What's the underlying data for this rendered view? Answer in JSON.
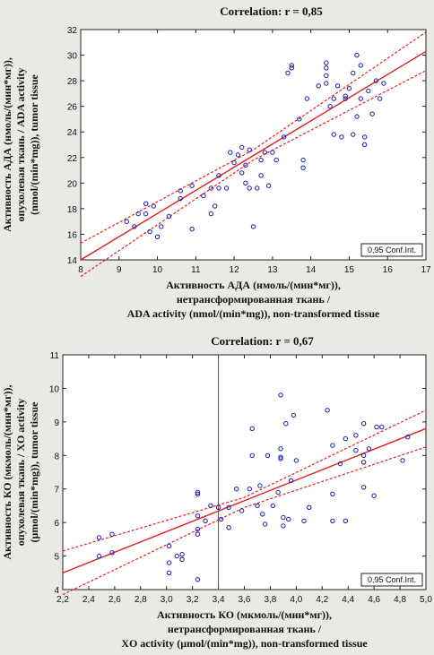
{
  "chart_data": [
    {
      "type": "scatter",
      "title": "Correlation: r = 0,85",
      "xlabel": [
        "Активность АДА (нмоль/(мин*мг)),",
        "нетрансформированная ткань /",
        "ADA activity  (nmol/(min*mg)), non-transformed tissue"
      ],
      "ylabel": [
        "Активность АДА (нмоль/(мин*мг)),",
        "опухолевая ткань / ADA activity",
        "(nmol/(min*mg)), tumor tissue"
      ],
      "xlim": [
        8,
        17
      ],
      "ylim": [
        14,
        32
      ],
      "xticks": [
        "8",
        "9",
        "10",
        "11",
        "12",
        "13",
        "14",
        "15",
        "16",
        "17"
      ],
      "yticks": [
        "14",
        "16",
        "18",
        "20",
        "22",
        "24",
        "26",
        "28",
        "30",
        "32"
      ],
      "legend": "0,95 Conf.Int.",
      "fit": [
        [
          8,
          14.0
        ],
        [
          17,
          30.3
        ]
      ],
      "ci_upper": [
        [
          8,
          15.3
        ],
        [
          12.5,
          22.6
        ],
        [
          17,
          31.8
        ]
      ],
      "ci_lower": [
        [
          8,
          12.7
        ],
        [
          12.5,
          21.8
        ],
        [
          17,
          28.8
        ]
      ],
      "points": [
        [
          9.2,
          17.0
        ],
        [
          9.4,
          16.6
        ],
        [
          9.5,
          17.6
        ],
        [
          9.7,
          18.4
        ],
        [
          9.7,
          17.6
        ],
        [
          9.9,
          18.2
        ],
        [
          9.8,
          16.2
        ],
        [
          10.0,
          15.8
        ],
        [
          10.1,
          16.6
        ],
        [
          10.3,
          17.4
        ],
        [
          10.6,
          18.8
        ],
        [
          10.6,
          19.4
        ],
        [
          10.9,
          19.8
        ],
        [
          10.9,
          16.4
        ],
        [
          11.2,
          19.0
        ],
        [
          11.4,
          19.6
        ],
        [
          11.4,
          17.6
        ],
        [
          11.5,
          18.2
        ],
        [
          11.6,
          19.6
        ],
        [
          11.6,
          20.6
        ],
        [
          11.8,
          19.6
        ],
        [
          11.9,
          22.4
        ],
        [
          12.0,
          21.6
        ],
        [
          12.1,
          22.2
        ],
        [
          12.2,
          20.8
        ],
        [
          12.2,
          22.8
        ],
        [
          12.3,
          21.4
        ],
        [
          12.3,
          20.0
        ],
        [
          12.4,
          22.6
        ],
        [
          12.4,
          19.6
        ],
        [
          12.5,
          16.6
        ],
        [
          12.6,
          19.6
        ],
        [
          12.7,
          20.6
        ],
        [
          12.7,
          21.8
        ],
        [
          12.8,
          22.4
        ],
        [
          12.9,
          19.8
        ],
        [
          13.0,
          22.4
        ],
        [
          13.1,
          21.8
        ],
        [
          13.3,
          23.6
        ],
        [
          13.4,
          28.6
        ],
        [
          13.5,
          29.2
        ],
        [
          13.5,
          29.0
        ],
        [
          13.7,
          25.0
        ],
        [
          13.8,
          21.8
        ],
        [
          13.8,
          21.2
        ],
        [
          13.9,
          26.6
        ],
        [
          14.2,
          27.6
        ],
        [
          14.4,
          27.8
        ],
        [
          14.4,
          28.4
        ],
        [
          14.4,
          29.0
        ],
        [
          14.4,
          29.4
        ],
        [
          14.5,
          26.0
        ],
        [
          14.6,
          23.8
        ],
        [
          14.6,
          26.6
        ],
        [
          14.7,
          27.6
        ],
        [
          14.8,
          23.6
        ],
        [
          14.9,
          26.6
        ],
        [
          14.9,
          26.8
        ],
        [
          15.0,
          27.4
        ],
        [
          15.1,
          23.8
        ],
        [
          15.1,
          28.6
        ],
        [
          15.2,
          30.0
        ],
        [
          15.2,
          25.2
        ],
        [
          15.3,
          26.6
        ],
        [
          15.3,
          29.2
        ],
        [
          15.4,
          23.6
        ],
        [
          15.4,
          23.0
        ],
        [
          15.5,
          27.2
        ],
        [
          15.6,
          25.4
        ],
        [
          15.7,
          28.0
        ],
        [
          15.8,
          26.6
        ],
        [
          15.9,
          27.8
        ]
      ]
    },
    {
      "type": "scatter",
      "title": "Correlation: r = 0,67",
      "xlabel": [
        "Активность КО (мкмоль/(мин*мг)),",
        "нетрансформированная ткань /",
        "XO activity (μmol/(min*mg)), non-transformed tissue"
      ],
      "ylabel": [
        "Активность КО (мкмоль/(мин*мг)),",
        "опухолевая ткань / XO activity",
        "(μmol/(min*mg)), tumor tissue"
      ],
      "xlim": [
        2.2,
        5.0
      ],
      "ylim": [
        4,
        11
      ],
      "xticks": [
        "2,2",
        "2,4",
        "2,6",
        "2,8",
        "3,0",
        "3,2",
        "3,4",
        "3,6",
        "3,8",
        "4,0",
        "4,2",
        "4,4",
        "4,6",
        "4,8",
        "5,0"
      ],
      "yticks": [
        "4",
        "5",
        "6",
        "7",
        "8",
        "9",
        "10",
        "11"
      ],
      "legend": "0,95 Conf.Int.",
      "fit": [
        [
          2.2,
          4.5
        ],
        [
          5.0,
          8.8
        ]
      ],
      "ci_upper": [
        [
          2.2,
          5.15
        ],
        [
          3.6,
          6.75
        ],
        [
          5.0,
          9.35
        ]
      ],
      "ci_lower": [
        [
          2.2,
          3.85
        ],
        [
          3.6,
          6.45
        ],
        [
          5.0,
          8.25
        ]
      ],
      "points": [
        [
          2.48,
          5.55
        ],
        [
          2.48,
          5.0
        ],
        [
          2.58,
          5.1
        ],
        [
          2.58,
          5.65
        ],
        [
          3.02,
          5.3
        ],
        [
          3.02,
          4.8
        ],
        [
          3.02,
          4.5
        ],
        [
          3.08,
          5.0
        ],
        [
          3.12,
          5.05
        ],
        [
          3.12,
          4.9
        ],
        [
          3.24,
          6.9
        ],
        [
          3.24,
          6.85
        ],
        [
          3.24,
          6.2
        ],
        [
          3.24,
          5.8
        ],
        [
          3.24,
          5.65
        ],
        [
          3.24,
          4.3
        ],
        [
          3.3,
          6.05
        ],
        [
          3.34,
          6.5
        ],
        [
          3.4,
          6.45
        ],
        [
          3.42,
          6.1
        ],
        [
          3.48,
          6.45
        ],
        [
          3.48,
          5.85
        ],
        [
          3.54,
          7.0
        ],
        [
          3.58,
          6.35
        ],
        [
          3.64,
          7.0
        ],
        [
          3.66,
          8.8
        ],
        [
          3.66,
          8.0
        ],
        [
          3.7,
          6.5
        ],
        [
          3.72,
          7.1
        ],
        [
          3.74,
          6.25
        ],
        [
          3.76,
          5.95
        ],
        [
          3.78,
          8.0
        ],
        [
          3.82,
          6.5
        ],
        [
          3.86,
          6.9
        ],
        [
          3.88,
          9.8
        ],
        [
          3.88,
          8.2
        ],
        [
          3.88,
          7.95
        ],
        [
          3.88,
          7.9
        ],
        [
          3.9,
          6.15
        ],
        [
          3.9,
          5.9
        ],
        [
          3.92,
          8.95
        ],
        [
          3.94,
          6.1
        ],
        [
          3.96,
          7.25
        ],
        [
          3.98,
          9.2
        ],
        [
          4.0,
          7.85
        ],
        [
          4.06,
          6.05
        ],
        [
          4.1,
          6.45
        ],
        [
          4.24,
          9.35
        ],
        [
          4.28,
          8.3
        ],
        [
          4.28,
          6.85
        ],
        [
          4.28,
          6.05
        ],
        [
          4.34,
          7.75
        ],
        [
          4.38,
          8.5
        ],
        [
          4.38,
          6.05
        ],
        [
          4.46,
          8.6
        ],
        [
          4.46,
          8.15
        ],
        [
          4.52,
          8.95
        ],
        [
          4.52,
          8.0
        ],
        [
          4.52,
          7.8
        ],
        [
          4.52,
          7.05
        ],
        [
          4.56,
          8.2
        ],
        [
          4.6,
          6.8
        ],
        [
          4.62,
          8.85
        ],
        [
          4.66,
          8.85
        ],
        [
          4.82,
          7.85
        ],
        [
          4.86,
          8.55
        ]
      ]
    }
  ]
}
